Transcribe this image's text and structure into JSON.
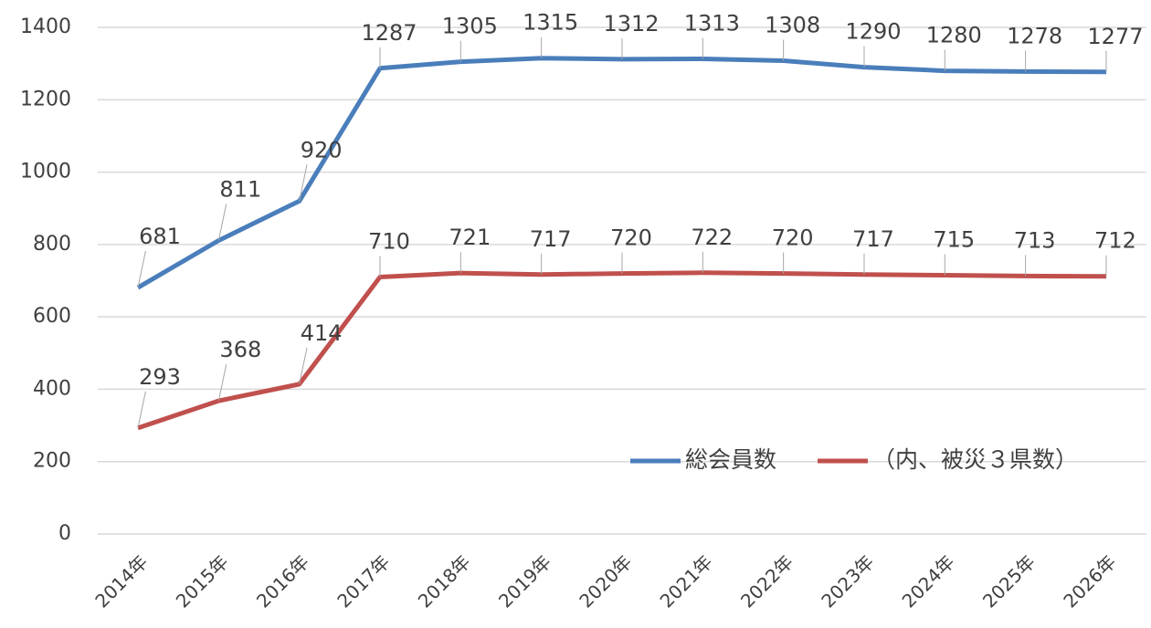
{
  "chart_data": {
    "type": "line",
    "categories": [
      "2014年",
      "2015年",
      "2016年",
      "2017年",
      "2018年",
      "2019年",
      "2020年",
      "2021年",
      "2022年",
      "2023年",
      "2024年",
      "2025年",
      "2026年"
    ],
    "series": [
      {
        "name": "総会員数",
        "color": "#4a7ebb",
        "values": [
          681,
          811,
          920,
          1287,
          1305,
          1315,
          1312,
          1313,
          1308,
          1290,
          1280,
          1278,
          1277
        ]
      },
      {
        "name": "（内、被災３県数）",
        "color": "#c0504d",
        "values": [
          293,
          368,
          414,
          710,
          721,
          717,
          720,
          722,
          720,
          717,
          715,
          713,
          712
        ]
      }
    ],
    "ylim": [
      0,
      1400
    ],
    "yticks": [
      0,
      200,
      400,
      600,
      800,
      1000,
      1200,
      1400
    ],
    "grid": true,
    "legend": "lower right"
  }
}
